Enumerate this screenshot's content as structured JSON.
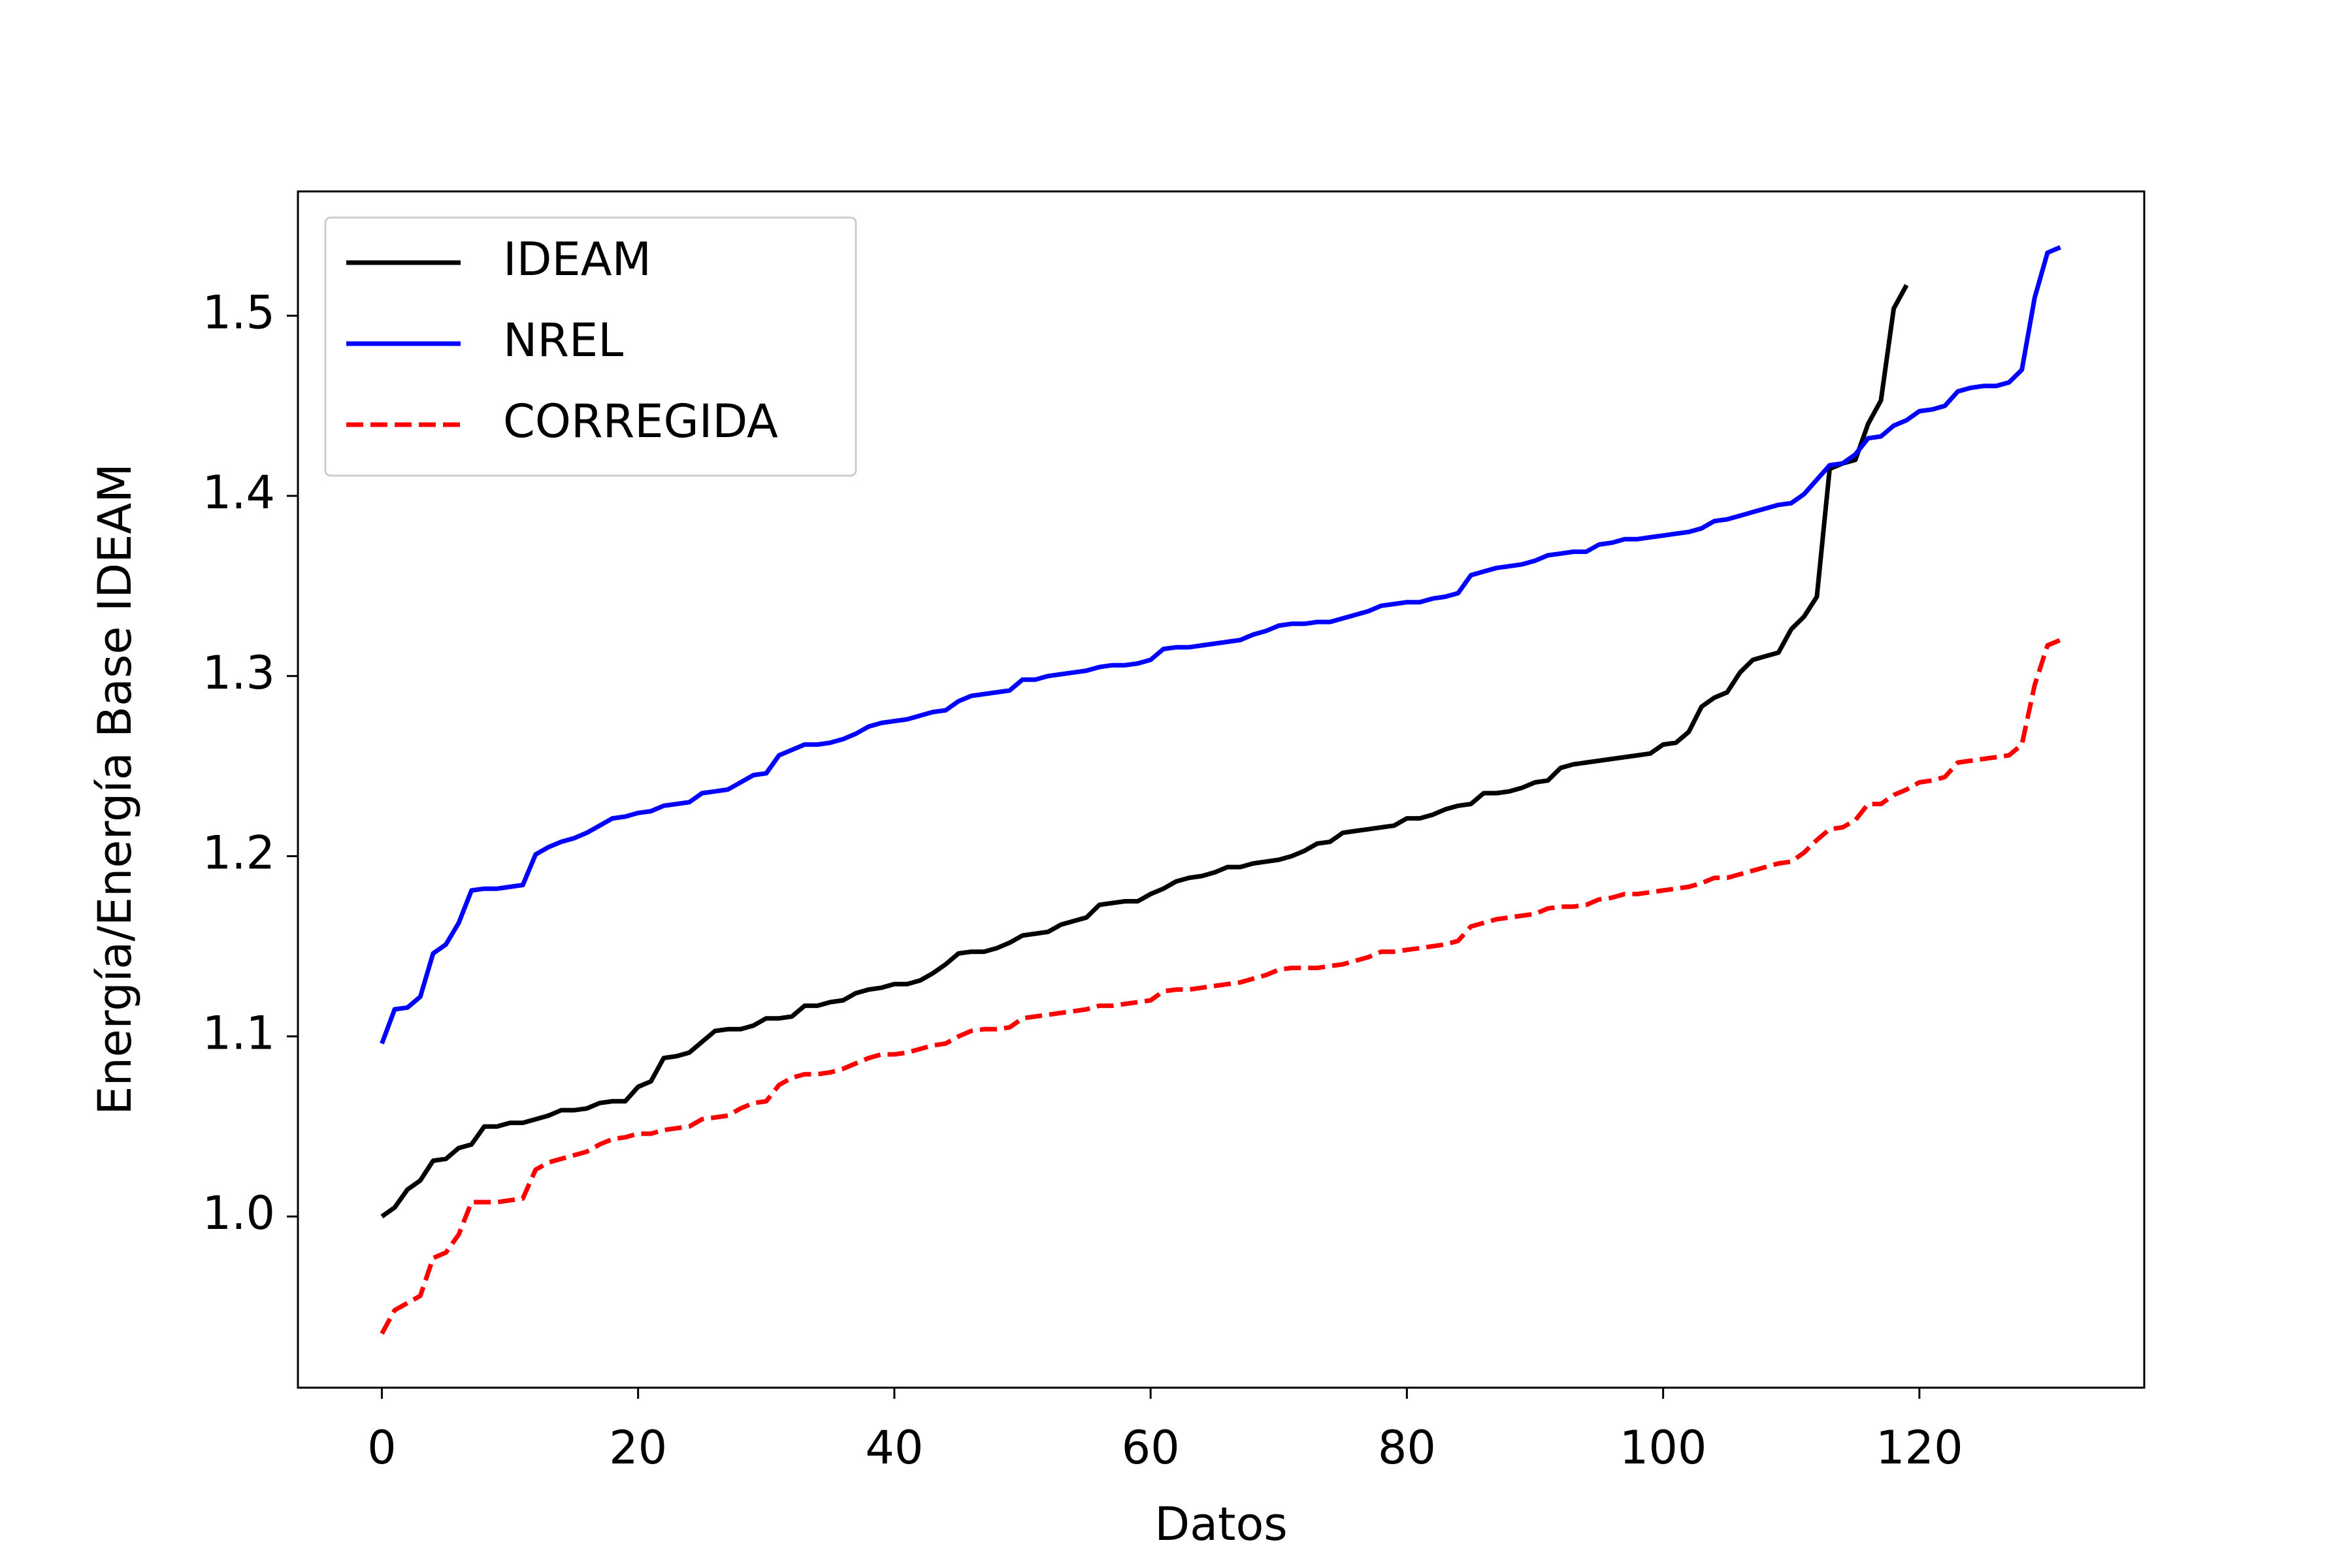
{
  "chart_data": {
    "type": "line",
    "xlabel": "Datos",
    "ylabel": "Energía/Energía Base IDEAM",
    "x": [
      0,
      1,
      2,
      3,
      4,
      5,
      6,
      7,
      8,
      9,
      10,
      11,
      12,
      13,
      14,
      15,
      16,
      17,
      18,
      19,
      20,
      21,
      22,
      23,
      24,
      25,
      26,
      27,
      28,
      29,
      30,
      31,
      32,
      33,
      34,
      35,
      36,
      37,
      38,
      39,
      40,
      41,
      42,
      43,
      44,
      45,
      46,
      47,
      48,
      49,
      50,
      51,
      52,
      53,
      54,
      55,
      56,
      57,
      58,
      59,
      60,
      61,
      62,
      63,
      64,
      65,
      66,
      67,
      68,
      69,
      70,
      71,
      72,
      73,
      74,
      75,
      76,
      77,
      78,
      79,
      80,
      81,
      82,
      83,
      84,
      85,
      86,
      87,
      88,
      89,
      90,
      91,
      92,
      93,
      94,
      95,
      96,
      97,
      98,
      99,
      100,
      101,
      102,
      103,
      104,
      105,
      106,
      107,
      108,
      109,
      110,
      111,
      112,
      113,
      114,
      115,
      116,
      117,
      118,
      119,
      120,
      121,
      122,
      123,
      124,
      125,
      126,
      127,
      128,
      129,
      130,
      131
    ],
    "series": [
      {
        "name": "IDEAM",
        "color": "#000000",
        "dash": false,
        "values": [
          1.0,
          1.005,
          1.015,
          1.02,
          1.031,
          1.032,
          1.038,
          1.04,
          1.05,
          1.05,
          1.052,
          1.052,
          1.054,
          1.056,
          1.059,
          1.059,
          1.06,
          1.063,
          1.064,
          1.064,
          1.072,
          1.075,
          1.088,
          1.089,
          1.091,
          1.097,
          1.103,
          1.104,
          1.104,
          1.106,
          1.11,
          1.11,
          1.111,
          1.117,
          1.117,
          1.119,
          1.12,
          1.124,
          1.126,
          1.127,
          1.129,
          1.129,
          1.131,
          1.135,
          1.14,
          1.146,
          1.147,
          1.147,
          1.149,
          1.152,
          1.156,
          1.157,
          1.158,
          1.162,
          1.164,
          1.166,
          1.173,
          1.174,
          1.175,
          1.175,
          1.179,
          1.182,
          1.186,
          1.188,
          1.189,
          1.191,
          1.194,
          1.194,
          1.196,
          1.197,
          1.198,
          1.2,
          1.203,
          1.207,
          1.208,
          1.213,
          1.214,
          1.215,
          1.216,
          1.217,
          1.221,
          1.221,
          1.223,
          1.226,
          1.228,
          1.229,
          1.235,
          1.235,
          1.236,
          1.238,
          1.241,
          1.242,
          1.249,
          1.251,
          1.252,
          1.253,
          1.254,
          1.255,
          1.256,
          1.257,
          1.262,
          1.263,
          1.269,
          1.283,
          1.288,
          1.291,
          1.302,
          1.309,
          1.311,
          1.313,
          1.326,
          1.333,
          1.344,
          1.415,
          1.418,
          1.42,
          1.44,
          1.453,
          1.504,
          1.517,
          null,
          null,
          null,
          null,
          null,
          null,
          null,
          null,
          null,
          null,
          null,
          null
        ]
      },
      {
        "name": "NREL",
        "color": "#0000ff",
        "dash": false,
        "values": [
          1.096,
          1.115,
          1.116,
          1.122,
          1.146,
          1.151,
          1.163,
          1.181,
          1.182,
          1.182,
          1.183,
          1.184,
          1.201,
          1.205,
          1.208,
          1.21,
          1.213,
          1.217,
          1.221,
          1.222,
          1.224,
          1.225,
          1.228,
          1.229,
          1.23,
          1.235,
          1.236,
          1.237,
          1.241,
          1.245,
          1.246,
          1.256,
          1.259,
          1.262,
          1.262,
          1.263,
          1.265,
          1.268,
          1.272,
          1.274,
          1.275,
          1.276,
          1.278,
          1.28,
          1.281,
          1.286,
          1.289,
          1.29,
          1.291,
          1.292,
          1.298,
          1.298,
          1.3,
          1.301,
          1.302,
          1.303,
          1.305,
          1.306,
          1.306,
          1.307,
          1.309,
          1.315,
          1.316,
          1.316,
          1.317,
          1.318,
          1.319,
          1.32,
          1.323,
          1.325,
          1.328,
          1.329,
          1.329,
          1.33,
          1.33,
          1.332,
          1.334,
          1.336,
          1.339,
          1.34,
          1.341,
          1.341,
          1.343,
          1.344,
          1.346,
          1.356,
          1.358,
          1.36,
          1.361,
          1.362,
          1.364,
          1.367,
          1.368,
          1.369,
          1.369,
          1.373,
          1.374,
          1.376,
          1.376,
          1.377,
          1.378,
          1.379,
          1.38,
          1.382,
          1.386,
          1.387,
          1.389,
          1.391,
          1.393,
          1.395,
          1.396,
          1.401,
          1.409,
          1.417,
          1.418,
          1.423,
          1.432,
          1.433,
          1.439,
          1.442,
          1.447,
          1.448,
          1.45,
          1.458,
          1.46,
          1.461,
          1.461,
          1.463,
          1.47,
          1.51,
          1.535,
          1.538
        ]
      },
      {
        "name": "CORREGIDA",
        "color": "#ff0000",
        "dash": true,
        "values": [
          0.935,
          0.948,
          0.952,
          0.956,
          0.977,
          0.98,
          0.99,
          1.008,
          1.008,
          1.008,
          1.009,
          1.01,
          1.026,
          1.03,
          1.032,
          1.034,
          1.036,
          1.04,
          1.043,
          1.044,
          1.046,
          1.046,
          1.048,
          1.049,
          1.05,
          1.054,
          1.055,
          1.056,
          1.06,
          1.063,
          1.064,
          1.073,
          1.077,
          1.079,
          1.079,
          1.08,
          1.082,
          1.085,
          1.088,
          1.09,
          1.09,
          1.091,
          1.093,
          1.095,
          1.096,
          1.1,
          1.103,
          1.104,
          1.104,
          1.105,
          1.11,
          1.111,
          1.112,
          1.113,
          1.114,
          1.115,
          1.117,
          1.117,
          1.118,
          1.119,
          1.12,
          1.125,
          1.126,
          1.126,
          1.127,
          1.128,
          1.129,
          1.13,
          1.132,
          1.134,
          1.137,
          1.138,
          1.138,
          1.138,
          1.139,
          1.14,
          1.142,
          1.144,
          1.147,
          1.147,
          1.148,
          1.149,
          1.15,
          1.151,
          1.153,
          1.161,
          1.163,
          1.165,
          1.166,
          1.167,
          1.168,
          1.171,
          1.172,
          1.172,
          1.173,
          1.176,
          1.177,
          1.179,
          1.179,
          1.18,
          1.181,
          1.182,
          1.183,
          1.185,
          1.188,
          1.188,
          1.19,
          1.192,
          1.194,
          1.196,
          1.197,
          1.202,
          1.209,
          1.215,
          1.216,
          1.22,
          1.229,
          1.229,
          1.234,
          1.237,
          1.241,
          1.242,
          1.244,
          1.252,
          1.253,
          1.254,
          1.255,
          1.256,
          1.262,
          1.295,
          1.317,
          1.32
        ]
      }
    ],
    "xlim": [
      -6.55,
      137.55
    ],
    "ylim": [
      0.905,
      1.569
    ],
    "xticks": [
      0,
      20,
      40,
      60,
      80,
      100,
      120
    ],
    "yticks": [
      {
        "value": 1,
        "label": "1.0"
      },
      1.1,
      1.2,
      1.3,
      1.4,
      1.5
    ],
    "grid": false,
    "legend": "upper left"
  }
}
